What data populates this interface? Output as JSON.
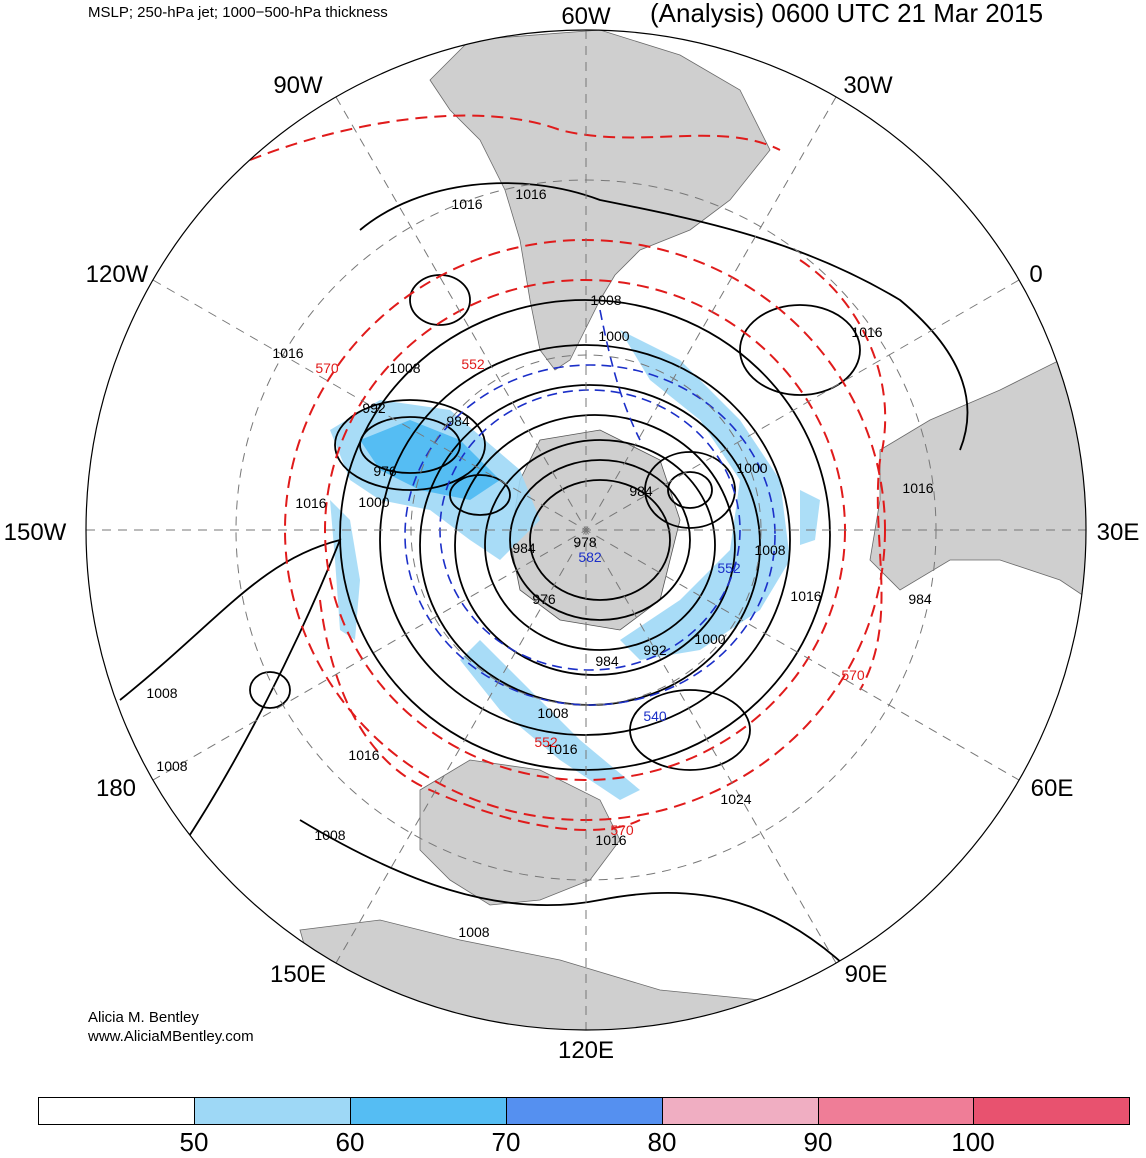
{
  "header": {
    "left_text": "MSLP; 250-hPa jet; 1000−500-hPa thickness",
    "right_text": "(Analysis) 0600 UTC 21 Mar 2015"
  },
  "credits": {
    "author": "Alicia M. Bentley",
    "website": "www.AliciaMBentley.com"
  },
  "longitude_labels": [
    "60W",
    "30W",
    "0",
    "30E",
    "60E",
    "90E",
    "120E",
    "150E",
    "180",
    "150W",
    "120W",
    "90W"
  ],
  "pressure_labels": [
    "1016",
    "1016",
    "1008",
    "1016",
    "1016",
    "1008",
    "1000",
    "992",
    "984",
    "976",
    "1000",
    "1016",
    "1000",
    "984",
    "984",
    "978",
    "976",
    "1016",
    "1008",
    "992",
    "984",
    "1000",
    "1008",
    "1016",
    "1016",
    "1024",
    "1016",
    "1016",
    "1008",
    "1008",
    "1008",
    "1008",
    "984"
  ],
  "thickness_labels": [
    "570",
    "552",
    "552",
    "570",
    "570",
    "552",
    "540",
    "582"
  ],
  "colors": {
    "land": "#cfcfcf",
    "mslp": "#000000",
    "thickness": "#e01b1b",
    "thickness_low": "#1b2fc8",
    "jet": [
      "#9ed8f6",
      "#55bdf3",
      "#5590f0",
      "#f0aec2",
      "#ef7d97",
      "#e8526f"
    ]
  },
  "colorbar": {
    "ticks": [
      "50",
      "60",
      "70",
      "80",
      "90",
      "100"
    ],
    "colors": [
      "#ffffff",
      "#9ed8f6",
      "#55bdf3",
      "#5590f0",
      "#f0aec2",
      "#ef7d97",
      "#e8526f"
    ]
  }
}
